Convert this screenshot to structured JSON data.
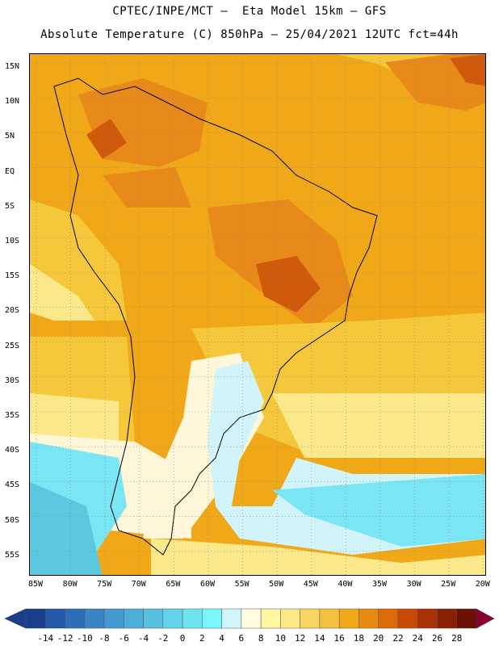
{
  "header": {
    "line1": "CPTEC/INPE/MCT –  Eta Model 15km – GFS",
    "line2": "Absolute Temperature (C) 850hPa – 25/04/2021 12UTC fct=44h"
  },
  "map": {
    "lat_labels": [
      "15N",
      "10N",
      "5N",
      "EQ",
      "5S",
      "10S",
      "15S",
      "20S",
      "25S",
      "30S",
      "35S",
      "40S",
      "45S",
      "50S",
      "55S"
    ],
    "lon_labels": [
      "85W",
      "80W",
      "75W",
      "70W",
      "65W",
      "60W",
      "55W",
      "50W",
      "45W",
      "40W",
      "35W",
      "30W",
      "25W",
      "20W"
    ],
    "grid": "dotted",
    "colors": {
      "warm_dark": "#d05a0c",
      "warm": "#e88a1a",
      "orange": "#f0a818",
      "yellow": "#f4c83a",
      "pale_yellow": "#fae88a",
      "cream": "#fdf6d8",
      "light_cyan": "#d0f4fa",
      "cyan": "#7ae6f4",
      "teal": "#5cc8e0"
    }
  },
  "colorbar": {
    "labels": [
      "-14",
      "-12",
      "-10",
      "-8",
      "-6",
      "-4",
      "-2",
      "0",
      "2",
      "4",
      "6",
      "8",
      "10",
      "12",
      "14",
      "16",
      "18",
      "20",
      "22",
      "24",
      "26",
      "28"
    ],
    "colors": [
      "#1a3d8c",
      "#2458a8",
      "#2e6eb8",
      "#3a84c4",
      "#449ad0",
      "#4eacd8",
      "#58bfe0",
      "#62d2e8",
      "#6ee4f0",
      "#7af6fa",
      "#d0f6fc",
      "#fffce0",
      "#fff6a0",
      "#fde886",
      "#f8d460",
      "#f4c040",
      "#f0a818",
      "#e88a10",
      "#dc6a08",
      "#c84a04",
      "#a83204",
      "#882004",
      "#6a1004"
    ]
  }
}
